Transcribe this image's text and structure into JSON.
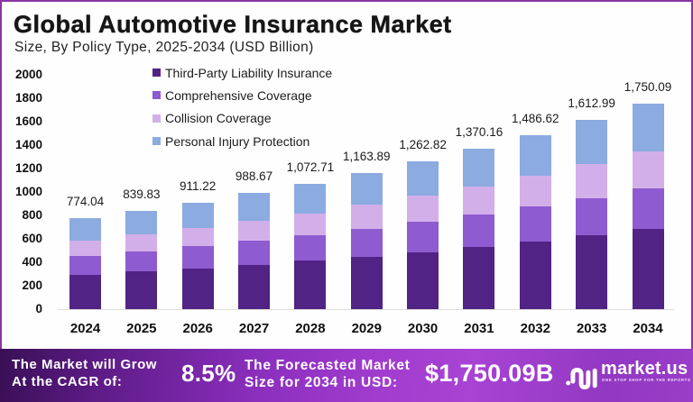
{
  "title": "Global Automotive Insurance Market",
  "subtitle": "Size, By Policy Type, 2025-2034 (USD Billion)",
  "colors": {
    "page_background": "#fefefe",
    "page_border": "#8a34a4",
    "axis_line": "#dedede",
    "title_text": "#161616",
    "banner_gradient_left": "#390f55",
    "banner_gradient_mid": "#a13cce",
    "banner_gradient_right": "#9a3dc8",
    "banner_text": "#ffffff"
  },
  "chart_data": {
    "type": "bar",
    "stacked": true,
    "title": "Global Automotive Insurance Market",
    "subtitle": "Size, By Policy Type, 2025-2034 (USD Billion)",
    "xlabel": "",
    "ylabel": "",
    "ylim": [
      0,
      2000
    ],
    "ytick_step": 200,
    "yticks": [
      0,
      200,
      400,
      600,
      800,
      1000,
      1200,
      1400,
      1600,
      1800,
      2000
    ],
    "grid": false,
    "legend_position": "top-left-inside",
    "categories": [
      "2024",
      "2025",
      "2026",
      "2027",
      "2028",
      "2029",
      "2030",
      "2031",
      "2032",
      "2033",
      "2034"
    ],
    "series": [
      {
        "name": "Third-Party Liability Insurance",
        "color": "#512385",
        "values": [
          294.13,
          319.98,
          348.09,
          378.66,
          411.92,
          448.1,
          487.45,
          530.25,
          576.8,
          627.45,
          682.53
        ]
      },
      {
        "name": "Comprehensive Coverage",
        "color": "#8e5bd0",
        "values": [
          160.23,
          173.17,
          187.16,
          202.28,
          218.62,
          236.27,
          255.34,
          275.95,
          298.22,
          322.28,
          348.27
        ]
      },
      {
        "name": "Collision Coverage",
        "color": "#d3afe9",
        "values": [
          131.59,
          143.69,
          156.91,
          171.34,
          187.08,
          204.26,
          223.01,
          243.48,
          265.81,
          290.18,
          316.77
        ]
      },
      {
        "name": "Personal Injury Protection",
        "color": "#8babe1",
        "values": [
          188.09,
          202.99,
          219.06,
          236.39,
          255.09,
          275.26,
          297.02,
          320.48,
          345.79,
          373.08,
          402.52
        ]
      }
    ],
    "totals": [
      774.04,
      839.83,
      911.22,
      988.67,
      1072.71,
      1163.89,
      1262.82,
      1370.16,
      1486.62,
      1612.99,
      1750.09
    ],
    "total_labels": [
      "774.04",
      "839.83",
      "911.22",
      "988.67",
      "1,072.71",
      "1,163.89",
      "1,262.82",
      "1,370.16",
      "1,486.62",
      "1,612.99",
      "1,750.09"
    ]
  },
  "banner": {
    "cagr_label_line1": "The Market will Grow",
    "cagr_label_line2": "At the CAGR of:",
    "cagr_value": "8.5%",
    "forecast_label_line1": "The Forecasted Market",
    "forecast_label_line2": "Size for 2034 in USD:",
    "forecast_value": "$1,750.09B",
    "brand_name": "market.us",
    "brand_tagline": "ONE STOP SHOP FOR THE REPORTS"
  }
}
